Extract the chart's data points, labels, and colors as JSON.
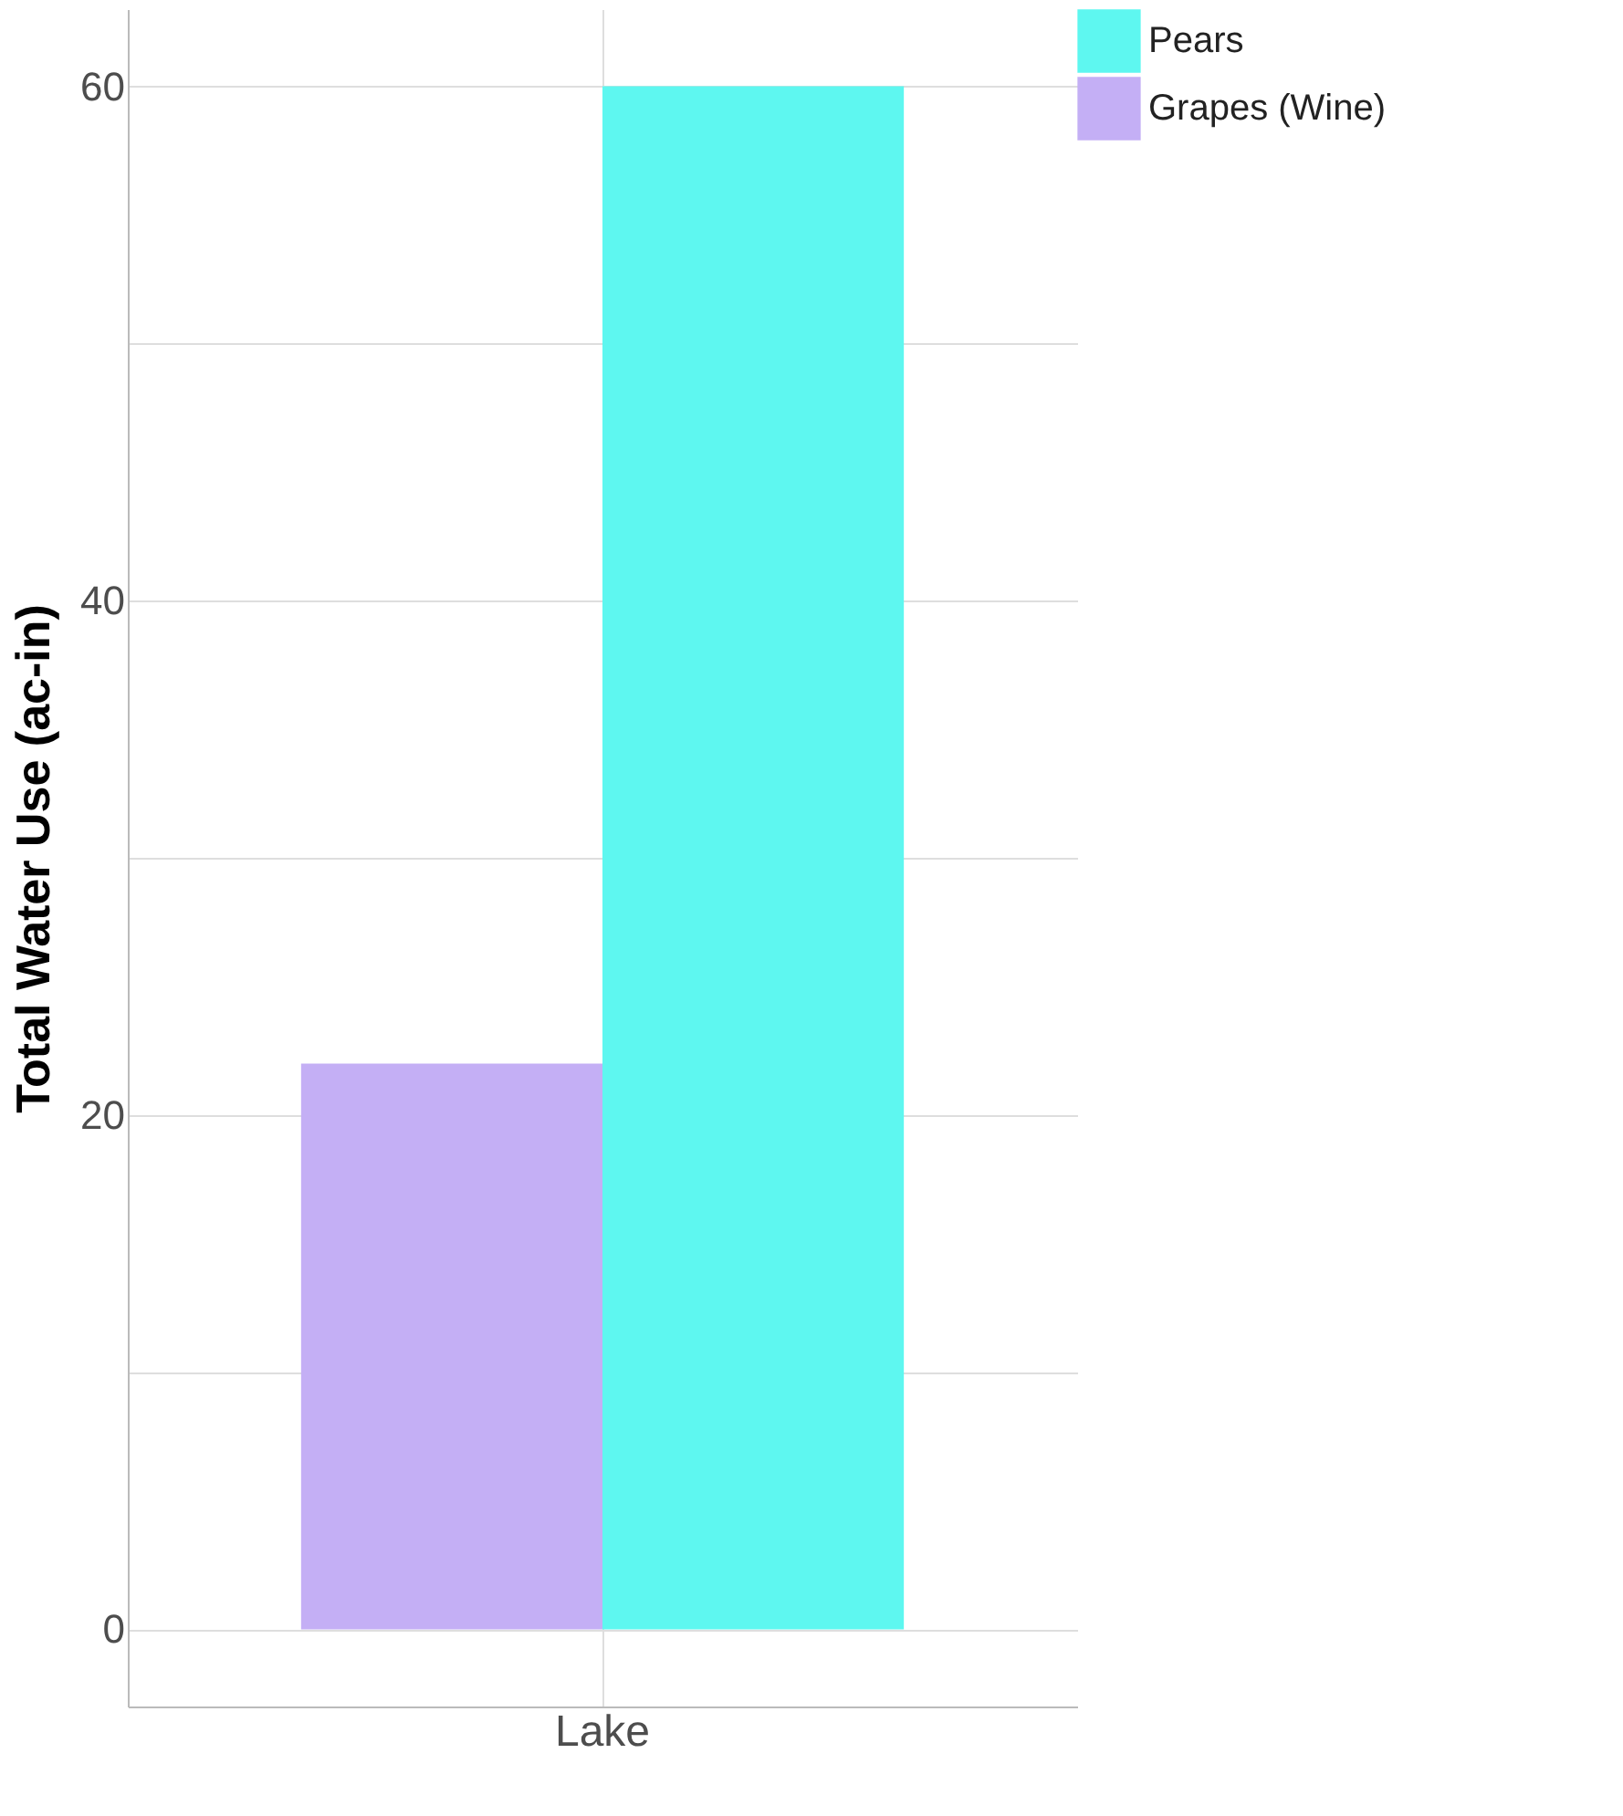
{
  "chart_data": {
    "type": "bar",
    "ylabel": "Total Water Use (ac-in)",
    "categories": [
      "Lake"
    ],
    "series": [
      {
        "name": "Grapes (Wine)",
        "color": "#c4aff5",
        "values": [
          22
        ]
      },
      {
        "name": "Pears",
        "color": "#5ef7f0",
        "values": [
          60
        ]
      }
    ],
    "ylim": [
      -3,
      63
    ],
    "yticks": [
      0,
      {
        "value": 10,
        "label": null
      },
      20,
      {
        "value": 30,
        "label": null
      },
      40,
      {
        "value": 50,
        "label": null
      },
      60
    ],
    "grid": true,
    "legend": "right"
  }
}
